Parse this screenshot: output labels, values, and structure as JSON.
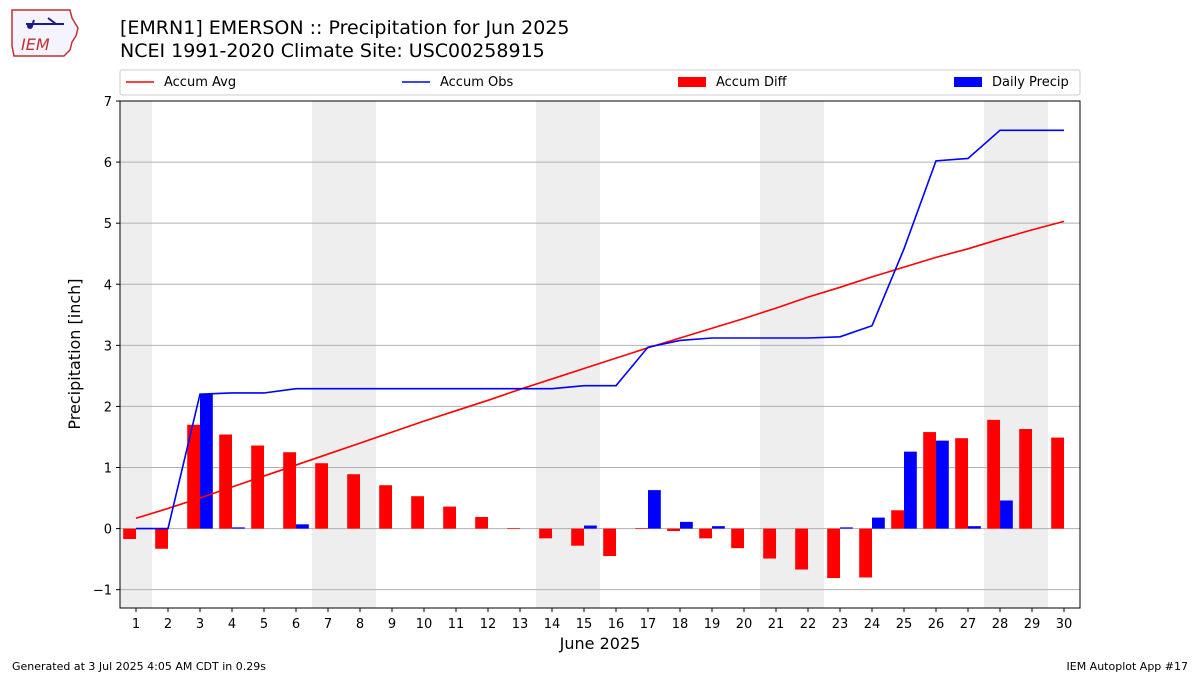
{
  "header": {
    "title": "[EMRN1] EMERSON :: Precipitation for Jun 2025",
    "subtitle": "NCEI 1991-2020 Climate Site: USC00258915"
  },
  "logo": {
    "text": "IEM"
  },
  "footer": {
    "generated": "Generated at 3 Jul 2025 4:05 AM CDT in 0.29s",
    "app": "IEM Autoplot App #17"
  },
  "colors": {
    "avg": "#ff0000",
    "obs": "#0000ff",
    "diff": "#ff0000",
    "daily": "#0000ff",
    "weekend": "#eeeeee",
    "grid": "#b0b0b0"
  },
  "chart_data": {
    "type": "bar",
    "xlabel": "June 2025",
    "ylabel": "Precipitation [inch]",
    "xlim": [
      0.5,
      30.5
    ],
    "ylim": [
      -1.3,
      7
    ],
    "yticks": [
      -1,
      0,
      1,
      2,
      3,
      4,
      5,
      6,
      7
    ],
    "grid": "horizontal",
    "legend_position": "top",
    "weekend_bands": [
      [
        0.5,
        1.5
      ],
      [
        6.5,
        8.5
      ],
      [
        13.5,
        15.5
      ],
      [
        20.5,
        22.5
      ],
      [
        27.5,
        29.5
      ]
    ],
    "x": [
      1,
      2,
      3,
      4,
      5,
      6,
      7,
      8,
      9,
      10,
      11,
      12,
      13,
      14,
      15,
      16,
      17,
      18,
      19,
      20,
      21,
      22,
      23,
      24,
      25,
      26,
      27,
      28,
      29,
      30
    ],
    "series": [
      {
        "name": "Accum Avg",
        "kind": "line",
        "values": [
          0.17,
          0.33,
          0.5,
          0.68,
          0.86,
          1.04,
          1.22,
          1.4,
          1.58,
          1.76,
          1.93,
          2.1,
          2.28,
          2.45,
          2.62,
          2.79,
          2.96,
          3.12,
          3.28,
          3.44,
          3.61,
          3.79,
          3.95,
          4.12,
          4.28,
          4.44,
          4.58,
          4.74,
          4.89,
          5.03
        ]
      },
      {
        "name": "Accum Obs",
        "kind": "line",
        "values": [
          0.0,
          0.0,
          2.2,
          2.22,
          2.22,
          2.29,
          2.29,
          2.29,
          2.29,
          2.29,
          2.29,
          2.29,
          2.29,
          2.29,
          2.34,
          2.34,
          2.97,
          3.08,
          3.12,
          3.12,
          3.12,
          3.12,
          3.14,
          3.32,
          4.58,
          6.02,
          6.06,
          6.52,
          6.52,
          6.52
        ]
      },
      {
        "name": "Accum Diff",
        "kind": "bar",
        "values": [
          -0.17,
          -0.33,
          1.7,
          1.54,
          1.36,
          1.25,
          1.07,
          0.89,
          0.71,
          0.53,
          0.36,
          0.19,
          0.01,
          -0.16,
          -0.28,
          -0.45,
          0.01,
          -0.04,
          -0.16,
          -0.32,
          -0.49,
          -0.67,
          -0.81,
          -0.8,
          0.3,
          1.58,
          1.48,
          1.78,
          1.63,
          1.49
        ]
      },
      {
        "name": "Daily Precip",
        "kind": "bar",
        "values": [
          0.0,
          0.0,
          2.2,
          0.02,
          0.0,
          0.07,
          0.0,
          0.0,
          0.0,
          0.0,
          0.0,
          0.0,
          0.0,
          0.0,
          0.05,
          0.0,
          0.63,
          0.11,
          0.04,
          0.0,
          0.0,
          0.0,
          0.02,
          0.18,
          1.26,
          1.44,
          0.04,
          0.46,
          0.0,
          0.0
        ]
      }
    ]
  }
}
